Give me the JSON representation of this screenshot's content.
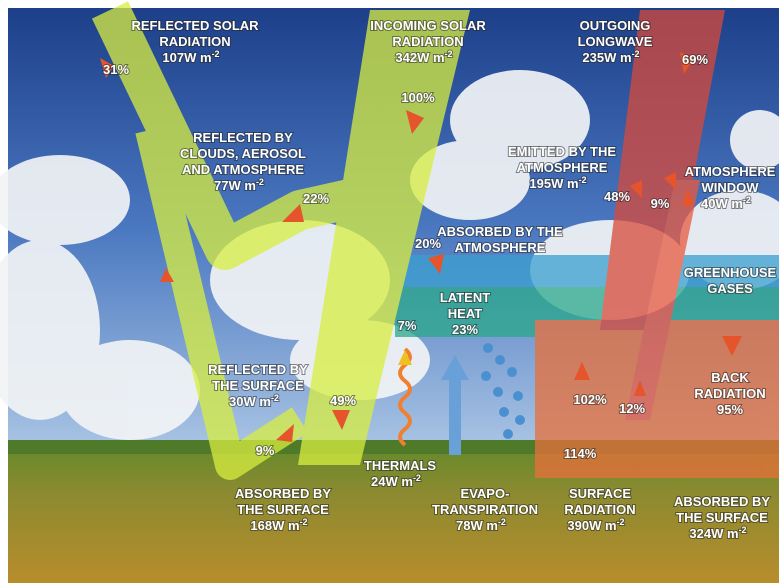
{
  "labels": [
    {
      "lines": [
        "REFLECTED SOLAR",
        "RADIATION"
      ],
      "unit": "107W m",
      "exp": "-2"
    },
    {
      "lines": [
        "INCOMING SOLAR",
        "RADIATION"
      ],
      "unit": "342W m",
      "exp": "-2"
    },
    {
      "lines": [
        "OUTGOING",
        "LONGWAVE"
      ],
      "unit": "235W m",
      "exp": "-2"
    },
    {
      "lines": [
        "REFLECTED BY",
        "CLOUDS, AEROSOL",
        "AND ATMOSPHERE"
      ],
      "unit": "77W m",
      "exp": "-2"
    },
    {
      "lines": [
        "EMITTED BY THE",
        "ATMOSPHERE"
      ],
      "unit": "195W m",
      "exp": "-2"
    },
    {
      "lines": [
        "ATMOSPHERE",
        "WINDOW"
      ],
      "unit": "40W m",
      "exp": "-2"
    },
    {
      "lines": [
        "ABSORBED BY THE",
        "ATMOSPHERE"
      ]
    },
    {
      "lines": [
        "GREENHOUSE",
        "GASES"
      ]
    },
    {
      "lines": [
        "LATENT",
        "HEAT",
        "23%"
      ]
    },
    {
      "lines": [
        "REFLECTED BY",
        "THE SURFACE"
      ],
      "unit": "30W m",
      "exp": "-2"
    },
    {
      "lines": [
        "BACK",
        "RADIATION",
        "95%"
      ]
    },
    {
      "lines": [
        "THERMALS"
      ],
      "unit": "24W m",
      "exp": "-2"
    },
    {
      "lines": [
        "ABSORBED BY",
        "THE SURFACE"
      ],
      "unit": "168W m",
      "exp": "-2"
    },
    {
      "lines": [
        "EVAPO-",
        "TRANSPIRATION"
      ],
      "unit": "78W m",
      "exp": "-2"
    },
    {
      "lines": [
        "SURFACE",
        "RADIATION"
      ],
      "unit": "390W m",
      "exp": "-2"
    },
    {
      "lines": [
        "ABSORBED BY",
        "THE SURFACE"
      ],
      "unit": "324W m",
      "exp": "-2"
    }
  ],
  "percents": [
    "31%",
    "100%",
    "22%",
    "69%",
    "48%",
    "9%",
    "20%",
    "7%",
    "49%",
    "9%",
    "102%",
    "12%",
    "114%"
  ]
}
